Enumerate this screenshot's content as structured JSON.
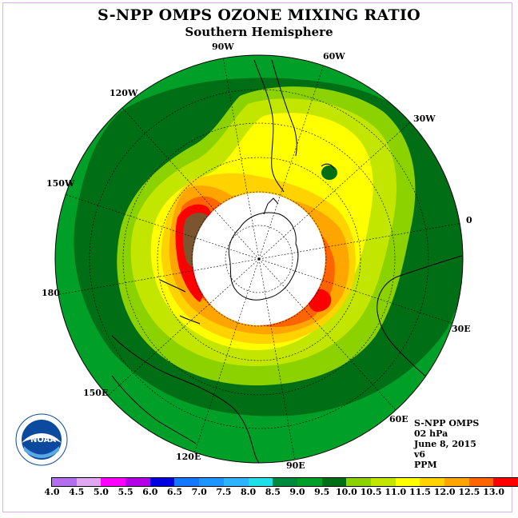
{
  "title": "S-NPP OMPS OZONE MIXING RATIO",
  "subtitle": "Southern Hemisphere",
  "longitude_labels": [
    "90W",
    "60W",
    "30W",
    "0",
    "30E",
    "60E",
    "90E",
    "120E",
    "150E",
    "180",
    "150W",
    "120W"
  ],
  "info": {
    "line1": "S-NPP OMPS",
    "line2": "02 hPa",
    "line3": "June 8, 2015",
    "line4": "v6",
    "line5": "PPM"
  },
  "logo_text": "NOAA",
  "colorbar": {
    "colors": [
      "#b36ef0",
      "#dfa8f0",
      "#ff00ff",
      "#b400e6",
      "#0000e0",
      "#1478ff",
      "#1e96ff",
      "#2db4ff",
      "#1ee0e6",
      "#008a3c",
      "#00a028",
      "#006e14",
      "#8cd200",
      "#c3e600",
      "#ffff00",
      "#ffd200",
      "#ffa500",
      "#ff6400",
      "#ff0000",
      "#7a5530"
    ],
    "tick_labels": [
      "4.0",
      "4.5",
      "5.0",
      "5.5",
      "6.0",
      "6.5",
      "7.0",
      "7.5",
      "8.0",
      "8.5",
      "9.0",
      "9.5",
      "10.0",
      "10.5",
      "11.0",
      "11.5",
      "12.0",
      "12.5",
      "13.0"
    ]
  },
  "map_colors": {
    "outer": "#00a028",
    "dark_band": "#006e14",
    "light_green": "#8cd200",
    "yellow_green": "#c3e600",
    "yellow": "#ffff00",
    "gold": "#ffd200",
    "orange": "#ffa500",
    "dark_orange": "#ff6400",
    "red": "#ff0000",
    "brown": "#7a5530",
    "polar_cap": "#ffffff"
  }
}
